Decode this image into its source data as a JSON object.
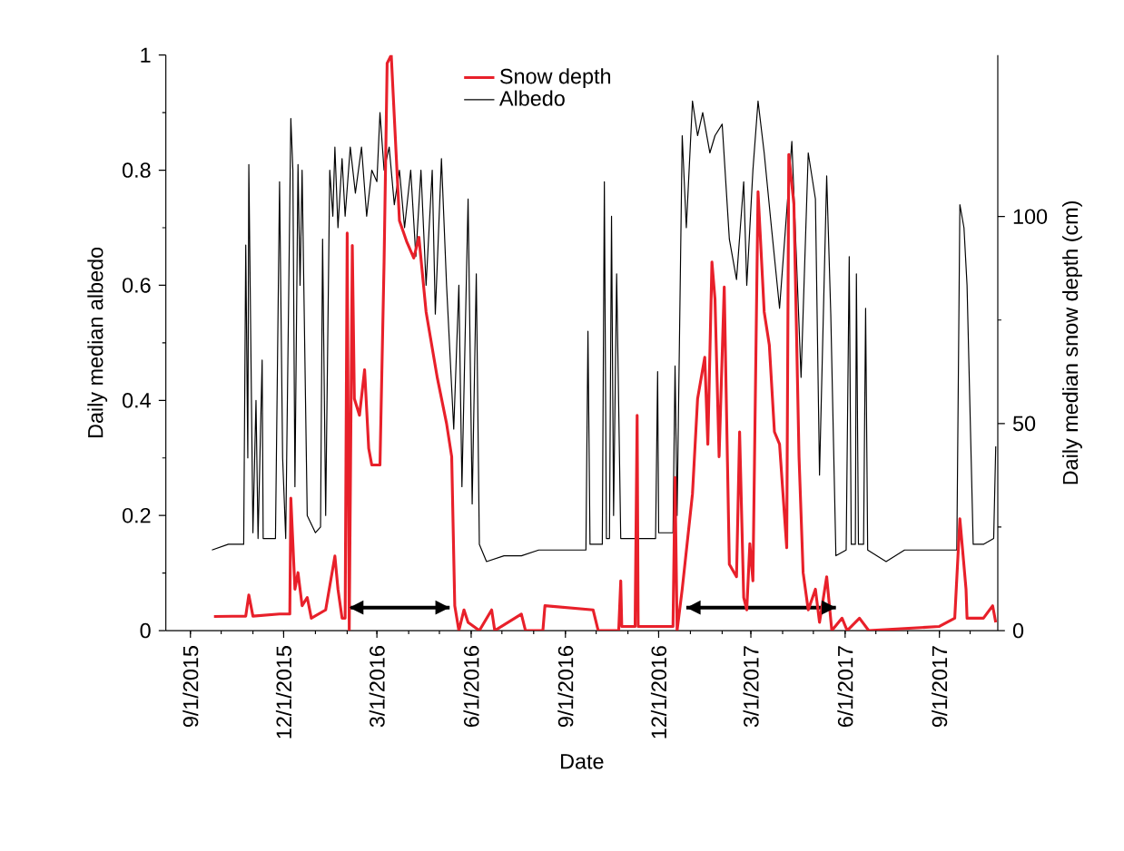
{
  "chart_data": {
    "type": "line",
    "xlabel": "Date",
    "ylabel": "Daily median albedo",
    "y2label": "Daily median snow depth (cm)",
    "xlim": [
      "2015-08-08",
      "2017-10-28"
    ],
    "xticks": [
      {
        "value": "2015-09-01",
        "label": "9/1/2015"
      },
      {
        "value": "2015-12-01",
        "label": "12/1/2015"
      },
      {
        "value": "2016-03-01",
        "label": "3/1/2016"
      },
      {
        "value": "2016-06-01",
        "label": "6/1/2016"
      },
      {
        "value": "2016-09-01",
        "label": "9/1/2016"
      },
      {
        "value": "2016-12-01",
        "label": "12/1/2016"
      },
      {
        "value": "2017-03-01",
        "label": "3/1/2017"
      },
      {
        "value": "2017-06-01",
        "label": "6/1/2017"
      },
      {
        "value": "2017-09-01",
        "label": "9/1/2017"
      }
    ],
    "ylim": [
      0,
      1
    ],
    "yticks": [
      0,
      0.2,
      0.4,
      0.6,
      0.8,
      1
    ],
    "y2lim": [
      0,
      139
    ],
    "y2ticks": [
      0,
      50,
      100
    ],
    "legend": "top",
    "line_style": "solid",
    "marker": "none",
    "grid": false,
    "series": [
      {
        "color": "#000000",
        "x": [
          "2016-02-03",
          "2016-05-11"
        ],
        "values": [
          0.04,
          0.04
        ]
      },
      {
        "color": "#000000",
        "x": [
          "2016-12-28",
          "2017-05-23"
        ],
        "values": [
          0.04,
          0.04
        ]
      },
      {
        "name": "Snow depth",
        "color": "#e8202a",
        "axis": "y2",
        "x": [
          "2015-09-24",
          "2015-10-25",
          "2015-10-28",
          "2015-11-01",
          "2015-11-27",
          "2015-12-07",
          "2015-12-08",
          "2015-12-12",
          "2015-12-15",
          "2015-12-19",
          "2015-12-24",
          "2015-12-28",
          "2016-01-11",
          "2016-01-20",
          "2016-01-23",
          "2016-01-27",
          "2016-01-30",
          "2016-02-01",
          "2016-02-03",
          "2016-02-06",
          "2016-02-08",
          "2016-02-13",
          "2016-02-18",
          "2016-02-22",
          "2016-02-25",
          "2016-03-04",
          "2016-03-08",
          "2016-03-11",
          "2016-03-15",
          "2016-03-18",
          "2016-03-23",
          "2016-03-30",
          "2016-04-06",
          "2016-04-11",
          "2016-04-18",
          "2016-04-29",
          "2016-05-08",
          "2016-05-13",
          "2016-05-16",
          "2016-05-20",
          "2016-05-25",
          "2016-05-29",
          "2016-06-09",
          "2016-06-21",
          "2016-06-24",
          "2016-07-20",
          "2016-07-24",
          "2016-08-10",
          "2016-08-12",
          "2016-09-28",
          "2016-10-03",
          "2016-10-23",
          "2016-10-25",
          "2016-10-26",
          "2016-11-08",
          "2016-11-10",
          "2016-11-11",
          "2016-12-15",
          "2016-12-17",
          "2016-12-19",
          "2016-12-24",
          "2017-01-03",
          "2017-01-08",
          "2017-01-15",
          "2017-01-18",
          "2017-01-22",
          "2017-01-25",
          "2017-01-29",
          "2017-02-03",
          "2017-02-08",
          "2017-02-15",
          "2017-02-18",
          "2017-02-22",
          "2017-02-25",
          "2017-02-28",
          "2017-03-03",
          "2017-03-08",
          "2017-03-14",
          "2017-03-19",
          "2017-03-24",
          "2017-03-29",
          "2017-04-05",
          "2017-04-07",
          "2017-04-12",
          "2017-04-17",
          "2017-04-21",
          "2017-04-26",
          "2017-05-03",
          "2017-05-07",
          "2017-05-14",
          "2017-05-19",
          "2017-05-29",
          "2017-06-03",
          "2017-06-15",
          "2017-06-24",
          "2017-09-01",
          "2017-09-16",
          "2017-09-21",
          "2017-09-27",
          "2017-09-28",
          "2017-10-14",
          "2017-10-23",
          "2017-10-26"
        ],
        "values": [
          3.4,
          3.5,
          8.6,
          3.5,
          4,
          4,
          32,
          10,
          14,
          6,
          8,
          3,
          5,
          18,
          10,
          3,
          3,
          96,
          0,
          93,
          56,
          52,
          63,
          44,
          40,
          40,
          89,
          137,
          139,
          124,
          99,
          94,
          90,
          95,
          77,
          61,
          50,
          42,
          6,
          0,
          5,
          2,
          0,
          5,
          0,
          4,
          0,
          0,
          6,
          5,
          0,
          0,
          12,
          1,
          1,
          52,
          1,
          1,
          37,
          0,
          10,
          33,
          56,
          66,
          45,
          89,
          80,
          42,
          83,
          16,
          13,
          48,
          8,
          5,
          21,
          12,
          106,
          77,
          69,
          48,
          45,
          20,
          115,
          103,
          42,
          14,
          5,
          10,
          2,
          13,
          0,
          3,
          0,
          3,
          0,
          1,
          3,
          27,
          10,
          3,
          3,
          6,
          2
        ]
      },
      {
        "name": "Albedo",
        "color": "#000000",
        "x": [
          "2015-09-22",
          "2015-10-08",
          "2015-10-23",
          "2015-10-25",
          "2015-10-27",
          "2015-10-28",
          "2015-11-01",
          "2015-11-04",
          "2015-11-06",
          "2015-11-10",
          "2015-11-11",
          "2015-11-23",
          "2015-11-27",
          "2015-11-30",
          "2015-12-03",
          "2015-12-08",
          "2015-12-10",
          "2015-12-12",
          "2015-12-15",
          "2015-12-17",
          "2015-12-19",
          "2015-12-24",
          "2016-01-01",
          "2016-01-06",
          "2016-01-08",
          "2016-01-11",
          "2016-01-15",
          "2016-01-18",
          "2016-01-20",
          "2016-01-23",
          "2016-01-27",
          "2016-01-30",
          "2016-02-04",
          "2016-02-09",
          "2016-02-15",
          "2016-02-20",
          "2016-02-25",
          "2016-03-01",
          "2016-03-04",
          "2016-03-08",
          "2016-03-13",
          "2016-03-18",
          "2016-03-23",
          "2016-03-28",
          "2016-04-03",
          "2016-04-08",
          "2016-04-13",
          "2016-04-18",
          "2016-04-24",
          "2016-04-27",
          "2016-05-03",
          "2016-05-08",
          "2016-05-15",
          "2016-05-20",
          "2016-05-23",
          "2016-05-29",
          "2016-06-02",
          "2016-06-06",
          "2016-06-09",
          "2016-06-16",
          "2016-07-03",
          "2016-07-20",
          "2016-08-06",
          "2016-08-24",
          "2016-09-11",
          "2016-09-21",
          "2016-09-23",
          "2016-09-25",
          "2016-10-07",
          "2016-10-09",
          "2016-10-11",
          "2016-10-14",
          "2016-10-16",
          "2016-10-18",
          "2016-10-21",
          "2016-10-25",
          "2016-11-11",
          "2016-11-28",
          "2016-11-30",
          "2016-12-01",
          "2016-12-15",
          "2016-12-17",
          "2016-12-19",
          "2016-12-24",
          "2016-12-28",
          "2017-01-03",
          "2017-01-08",
          "2017-01-13",
          "2017-01-20",
          "2017-01-25",
          "2017-02-01",
          "2017-02-08",
          "2017-02-15",
          "2017-02-22",
          "2017-02-25",
          "2017-03-03",
          "2017-03-08",
          "2017-03-14",
          "2017-03-20",
          "2017-03-29",
          "2017-04-03",
          "2017-04-10",
          "2017-04-19",
          "2017-04-26",
          "2017-05-03",
          "2017-05-07",
          "2017-05-14",
          "2017-05-18",
          "2017-05-23",
          "2017-06-02",
          "2017-06-05",
          "2017-06-07",
          "2017-06-11",
          "2017-06-12",
          "2017-06-14",
          "2017-06-19",
          "2017-06-21",
          "2017-06-23",
          "2017-07-11",
          "2017-07-29",
          "2017-08-15",
          "2017-09-01",
          "2017-09-18",
          "2017-09-21",
          "2017-09-25",
          "2017-09-28",
          "2017-10-04",
          "2017-10-14",
          "2017-10-24",
          "2017-10-26"
        ],
        "values": [
          0.14,
          0.15,
          0.15,
          0.67,
          0.3,
          0.81,
          0.17,
          0.4,
          0.16,
          0.47,
          0.16,
          0.16,
          0.78,
          0.3,
          0.16,
          0.89,
          0.8,
          0.25,
          0.81,
          0.6,
          0.8,
          0.2,
          0.17,
          0.18,
          0.68,
          0.2,
          0.8,
          0.72,
          0.84,
          0.7,
          0.82,
          0.72,
          0.84,
          0.76,
          0.84,
          0.72,
          0.8,
          0.78,
          0.9,
          0.8,
          0.84,
          0.74,
          0.8,
          0.7,
          0.8,
          0.65,
          0.8,
          0.6,
          0.8,
          0.55,
          0.82,
          0.6,
          0.35,
          0.6,
          0.25,
          0.75,
          0.22,
          0.62,
          0.15,
          0.12,
          0.13,
          0.13,
          0.14,
          0.14,
          0.14,
          0.14,
          0.52,
          0.15,
          0.15,
          0.78,
          0.16,
          0.16,
          0.72,
          0.2,
          0.62,
          0.16,
          0.16,
          0.16,
          0.45,
          0.17,
          0.17,
          0.46,
          0.2,
          0.86,
          0.7,
          0.92,
          0.86,
          0.9,
          0.83,
          0.86,
          0.88,
          0.68,
          0.61,
          0.78,
          0.6,
          0.8,
          0.92,
          0.83,
          0.72,
          0.56,
          0.68,
          0.85,
          0.44,
          0.83,
          0.75,
          0.27,
          0.79,
          0.55,
          0.13,
          0.14,
          0.65,
          0.15,
          0.15,
          0.62,
          0.15,
          0.15,
          0.56,
          0.14,
          0.12,
          0.14,
          0.14,
          0.14,
          0.14,
          0.74,
          0.7,
          0.6,
          0.15,
          0.15,
          0.16,
          0.32
        ]
      }
    ]
  }
}
